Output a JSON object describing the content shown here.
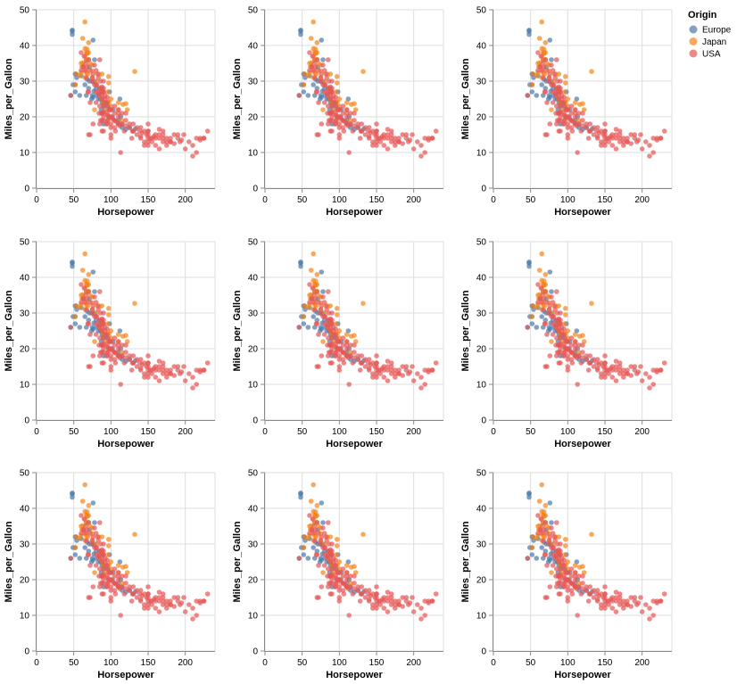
{
  "chart_data": {
    "type": "scatter",
    "layout": "3x3 repeated panels",
    "panels": 9,
    "xlabel": "Horsepower",
    "ylabel": "Miles_per_Gallon",
    "xlim": [
      0,
      240
    ],
    "ylim": [
      0,
      50
    ],
    "xticks": [
      0,
      50,
      100,
      150,
      200
    ],
    "yticks": [
      0,
      10,
      20,
      30,
      40,
      50
    ],
    "grid": true,
    "legend": {
      "title": "Origin",
      "placement": "top-right",
      "entries": [
        {
          "name": "Europe",
          "color": "#4c78a8"
        },
        {
          "name": "Japan",
          "color": "#f58518"
        },
        {
          "name": "USA",
          "color": "#e45756"
        }
      ]
    },
    "series": [
      {
        "name": "Europe",
        "color": "#4c78a8",
        "points": [
          [
            46,
            26
          ],
          [
            48,
            43.1
          ],
          [
            48,
            44.3
          ],
          [
            48,
            44
          ],
          [
            49,
            29
          ],
          [
            52,
            29
          ],
          [
            52,
            27
          ],
          [
            53,
            32
          ],
          [
            54,
            31
          ],
          [
            58,
            26
          ],
          [
            60,
            31.5
          ],
          [
            65,
            29
          ],
          [
            67,
            36
          ],
          [
            67,
            26
          ],
          [
            68,
            30.5
          ],
          [
            70,
            28
          ],
          [
            71,
            30
          ],
          [
            71,
            34
          ],
          [
            74,
            25
          ],
          [
            75,
            26
          ],
          [
            76,
            25.5
          ],
          [
            76,
            29.8
          ],
          [
            77,
            27.2
          ],
          [
            78,
            36
          ],
          [
            78,
            30
          ],
          [
            80,
            28
          ],
          [
            81,
            26
          ],
          [
            83,
            25
          ],
          [
            85,
            28
          ],
          [
            86,
            25
          ],
          [
            87,
            22
          ],
          [
            88,
            24
          ],
          [
            88,
            27
          ],
          [
            90,
            23
          ],
          [
            90,
            24
          ],
          [
            90,
            18
          ],
          [
            95,
            23
          ],
          [
            97,
            20
          ],
          [
            98,
            27
          ],
          [
            102,
            20
          ],
          [
            103,
            22
          ],
          [
            110,
            19
          ],
          [
            112,
            25
          ],
          [
            113,
            20
          ],
          [
            115,
            17
          ],
          [
            115,
            18
          ],
          [
            120,
            16.5
          ],
          [
            125,
            17
          ],
          [
            133,
            16.6
          ],
          [
            76,
            41.5
          ],
          [
            52,
            32
          ]
        ]
      },
      {
        "name": "Japan",
        "color": "#f58518",
        "points": [
          [
            52,
            29
          ],
          [
            53,
            32
          ],
          [
            58,
            31.6
          ],
          [
            60,
            35
          ],
          [
            60,
            32.4
          ],
          [
            61,
            34
          ],
          [
            62,
            35.1
          ],
          [
            65,
            37
          ],
          [
            65,
            39.1
          ],
          [
            65,
            46.6
          ],
          [
            65,
            31
          ],
          [
            67,
            38.1
          ],
          [
            67,
            32.3
          ],
          [
            68,
            37.7
          ],
          [
            68,
            39
          ],
          [
            68,
            38
          ],
          [
            69,
            32
          ],
          [
            70,
            38
          ],
          [
            70,
            36.1
          ],
          [
            70,
            40.8
          ],
          [
            72,
            35
          ],
          [
            75,
            32.9
          ],
          [
            75,
            31
          ],
          [
            75,
            34.5
          ],
          [
            78,
            22
          ],
          [
            80,
            30
          ],
          [
            84,
            32
          ],
          [
            88,
            25
          ],
          [
            88,
            27.5
          ],
          [
            90,
            24
          ],
          [
            92,
            22
          ],
          [
            93,
            24
          ],
          [
            95,
            24
          ],
          [
            96,
            27
          ],
          [
            97,
            20
          ],
          [
            97,
            31.3
          ],
          [
            97,
            29.5
          ],
          [
            97,
            24.2
          ],
          [
            100,
            25
          ],
          [
            100,
            23
          ],
          [
            110,
            22
          ],
          [
            110,
            24
          ],
          [
            115,
            19
          ],
          [
            116,
            23.5
          ],
          [
            120,
            23.7
          ],
          [
            122,
            22
          ],
          [
            132,
            32.7
          ],
          [
            62,
            42
          ],
          [
            67,
            33
          ],
          [
            67,
            36
          ],
          [
            85,
            26
          ],
          [
            88,
            32
          ]
        ]
      },
      {
        "name": "USA",
        "color": "#e45756",
        "points": [
          [
            130,
            18
          ],
          [
            165,
            15
          ],
          [
            150,
            18
          ],
          [
            150,
            16
          ],
          [
            140,
            17
          ],
          [
            198,
            15
          ],
          [
            220,
            14
          ],
          [
            215,
            14
          ],
          [
            225,
            14
          ],
          [
            190,
            15
          ],
          [
            170,
            15
          ],
          [
            160,
            14
          ],
          [
            150,
            15
          ],
          [
            225,
            14
          ],
          [
            95,
            24
          ],
          [
            97,
            22
          ],
          [
            85,
            18
          ],
          [
            88,
            21
          ],
          [
            46,
            26
          ],
          [
            87,
            21
          ],
          [
            90,
            20
          ],
          [
            95,
            21
          ],
          [
            113,
            10
          ],
          [
            90,
            27
          ],
          [
            215,
            10
          ],
          [
            200,
            11
          ],
          [
            210,
            9
          ],
          [
            193,
            13
          ],
          [
            88,
            25
          ],
          [
            90,
            21
          ],
          [
            95,
            19
          ],
          [
            100,
            14
          ],
          [
            105,
            19
          ],
          [
            100,
            18
          ],
          [
            88,
            21
          ],
          [
            100,
            15
          ],
          [
            165,
            14
          ],
          [
            175,
            14
          ],
          [
            153,
            14
          ],
          [
            150,
            16
          ],
          [
            180,
            13
          ],
          [
            170,
            13
          ],
          [
            175,
            12
          ],
          [
            110,
            18
          ],
          [
            72,
            15
          ],
          [
            100,
            22
          ],
          [
            88,
            16
          ],
          [
            86,
            19
          ],
          [
            90,
            16
          ],
          [
            70,
            15
          ],
          [
            76,
            18
          ],
          [
            65,
            33
          ],
          [
            69,
            27
          ],
          [
            60,
            33
          ],
          [
            70,
            27
          ],
          [
            72,
            24
          ],
          [
            80,
            29
          ],
          [
            78,
            34.5
          ],
          [
            85,
            23
          ],
          [
            90,
            19
          ],
          [
            84,
            21
          ],
          [
            67,
            31
          ],
          [
            63,
            34
          ],
          [
            105,
            19
          ],
          [
            110,
            18
          ],
          [
            139,
            16
          ],
          [
            105,
            17
          ],
          [
            95,
            18
          ],
          [
            100,
            20
          ],
          [
            145,
            13
          ],
          [
            150,
            14
          ],
          [
            180,
            13
          ],
          [
            148,
            15
          ],
          [
            129,
            16
          ],
          [
            110,
            18
          ],
          [
            105,
            19
          ],
          [
            98,
            20
          ],
          [
            120,
            21
          ],
          [
            145,
            16
          ],
          [
            84,
            27
          ],
          [
            92,
            25
          ],
          [
            81,
            29
          ],
          [
            83,
            31
          ],
          [
            90,
            28
          ],
          [
            110,
            22
          ],
          [
            63,
            34
          ],
          [
            84,
            26
          ],
          [
            84,
            26.6
          ],
          [
            88,
            28.4
          ],
          [
            92,
            24
          ],
          [
            100,
            22
          ],
          [
            110,
            21
          ],
          [
            85,
            28
          ],
          [
            80,
            24
          ],
          [
            105,
            23
          ],
          [
            96,
            19
          ],
          [
            90,
            27
          ],
          [
            88,
            28
          ],
          [
            76,
            32
          ],
          [
            90,
            23
          ],
          [
            150,
            13
          ],
          [
            155,
            14
          ],
          [
            160,
            15
          ],
          [
            125,
            17
          ],
          [
            130,
            16
          ],
          [
            140,
            14
          ],
          [
            135,
            15
          ],
          [
            115,
            18
          ],
          [
            120,
            19
          ],
          [
            175,
            13
          ],
          [
            185,
            15
          ],
          [
            190,
            14
          ],
          [
            205,
            13
          ],
          [
            160,
            12
          ],
          [
            230,
            16
          ],
          [
            180,
            14
          ],
          [
            145,
            12
          ],
          [
            155,
            13
          ],
          [
            140,
            14.5
          ],
          [
            120,
            17.5
          ],
          [
            165,
            16.5
          ],
          [
            170,
            16
          ],
          [
            130,
            16
          ],
          [
            110,
            20
          ],
          [
            115,
            21
          ],
          [
            100,
            20
          ],
          [
            90,
            21.5
          ],
          [
            95,
            20.5
          ],
          [
            78,
            29
          ],
          [
            82,
            32
          ],
          [
            88,
            26
          ],
          [
            86,
            30
          ],
          [
            96,
            23
          ],
          [
            102,
            19.5
          ],
          [
            108,
            18.5
          ],
          [
            98,
            22
          ],
          [
            92,
            26
          ],
          [
            60,
            38
          ],
          [
            64,
            37
          ],
          [
            66,
            35
          ],
          [
            68,
            34
          ],
          [
            72,
            33
          ],
          [
            74,
            30
          ],
          [
            80,
            27
          ],
          [
            95,
            25.5
          ],
          [
            105,
            21
          ],
          [
            112,
            17.5
          ],
          [
            125,
            18
          ],
          [
            135,
            17
          ],
          [
            142,
            15.5
          ],
          [
            158,
            14.5
          ],
          [
            170,
            14
          ],
          [
            185,
            12.5
          ],
          [
            195,
            13.5
          ],
          [
            210,
            12
          ],
          [
            220,
            13.5
          ],
          [
            88,
            19
          ],
          [
            94,
            18
          ],
          [
            100,
            17
          ],
          [
            106,
            16
          ],
          [
            118,
            16
          ],
          [
            128,
            14
          ],
          [
            150,
            12
          ],
          [
            165,
            11
          ],
          [
            90,
            30
          ],
          [
            80,
            33
          ],
          [
            85,
            36
          ],
          [
            70,
            36
          ],
          [
            75,
            31
          ]
        ]
      }
    ]
  }
}
